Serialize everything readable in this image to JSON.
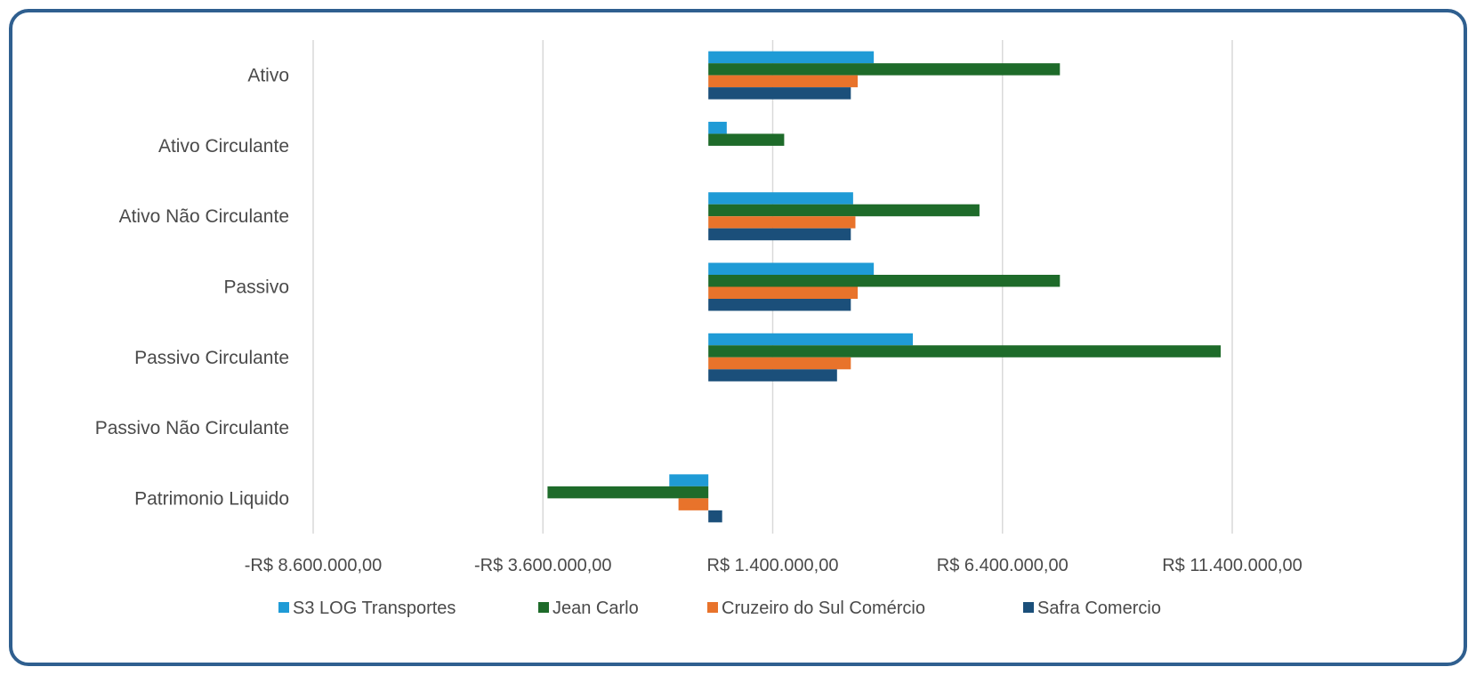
{
  "chart_data": {
    "type": "bar",
    "orientation": "horizontal",
    "title": "",
    "categories": [
      "Ativo",
      "Ativo Circulante",
      "Ativo Não Circulante",
      "Passivo",
      "Passivo Circulante",
      "Passivo Não Circulante",
      "Patrimonio Liquido"
    ],
    "series": [
      {
        "name": "S3 LOG Transportes",
        "color": "#1f9bd6",
        "values": [
          3600000,
          400000,
          3150000,
          3600000,
          4450000,
          0,
          -850000
        ]
      },
      {
        "name": "Jean Carlo",
        "color": "#1e6b2a",
        "values": [
          7650000,
          1650000,
          5900000,
          7650000,
          11150000,
          0,
          -3500000
        ]
      },
      {
        "name": "Cruzeiro do Sul Comércio",
        "color": "#e8732b",
        "values": [
          3250000,
          0,
          3200000,
          3250000,
          3100000,
          0,
          -650000
        ]
      },
      {
        "name": "Safra Comercio",
        "color": "#1b4f7a",
        "values": [
          3100000,
          0,
          3100000,
          3100000,
          2800000,
          0,
          300000
        ]
      }
    ],
    "x_ticks": [
      "-R$ 8.600.000,00",
      "-R$ 3.600.000,00",
      "R$ 1.400.000,00",
      "R$ 6.400.000,00",
      "R$ 11.400.000,00"
    ],
    "xlim": [
      -8600000,
      11400000
    ],
    "grid": "vertical",
    "legend": "bottom"
  }
}
